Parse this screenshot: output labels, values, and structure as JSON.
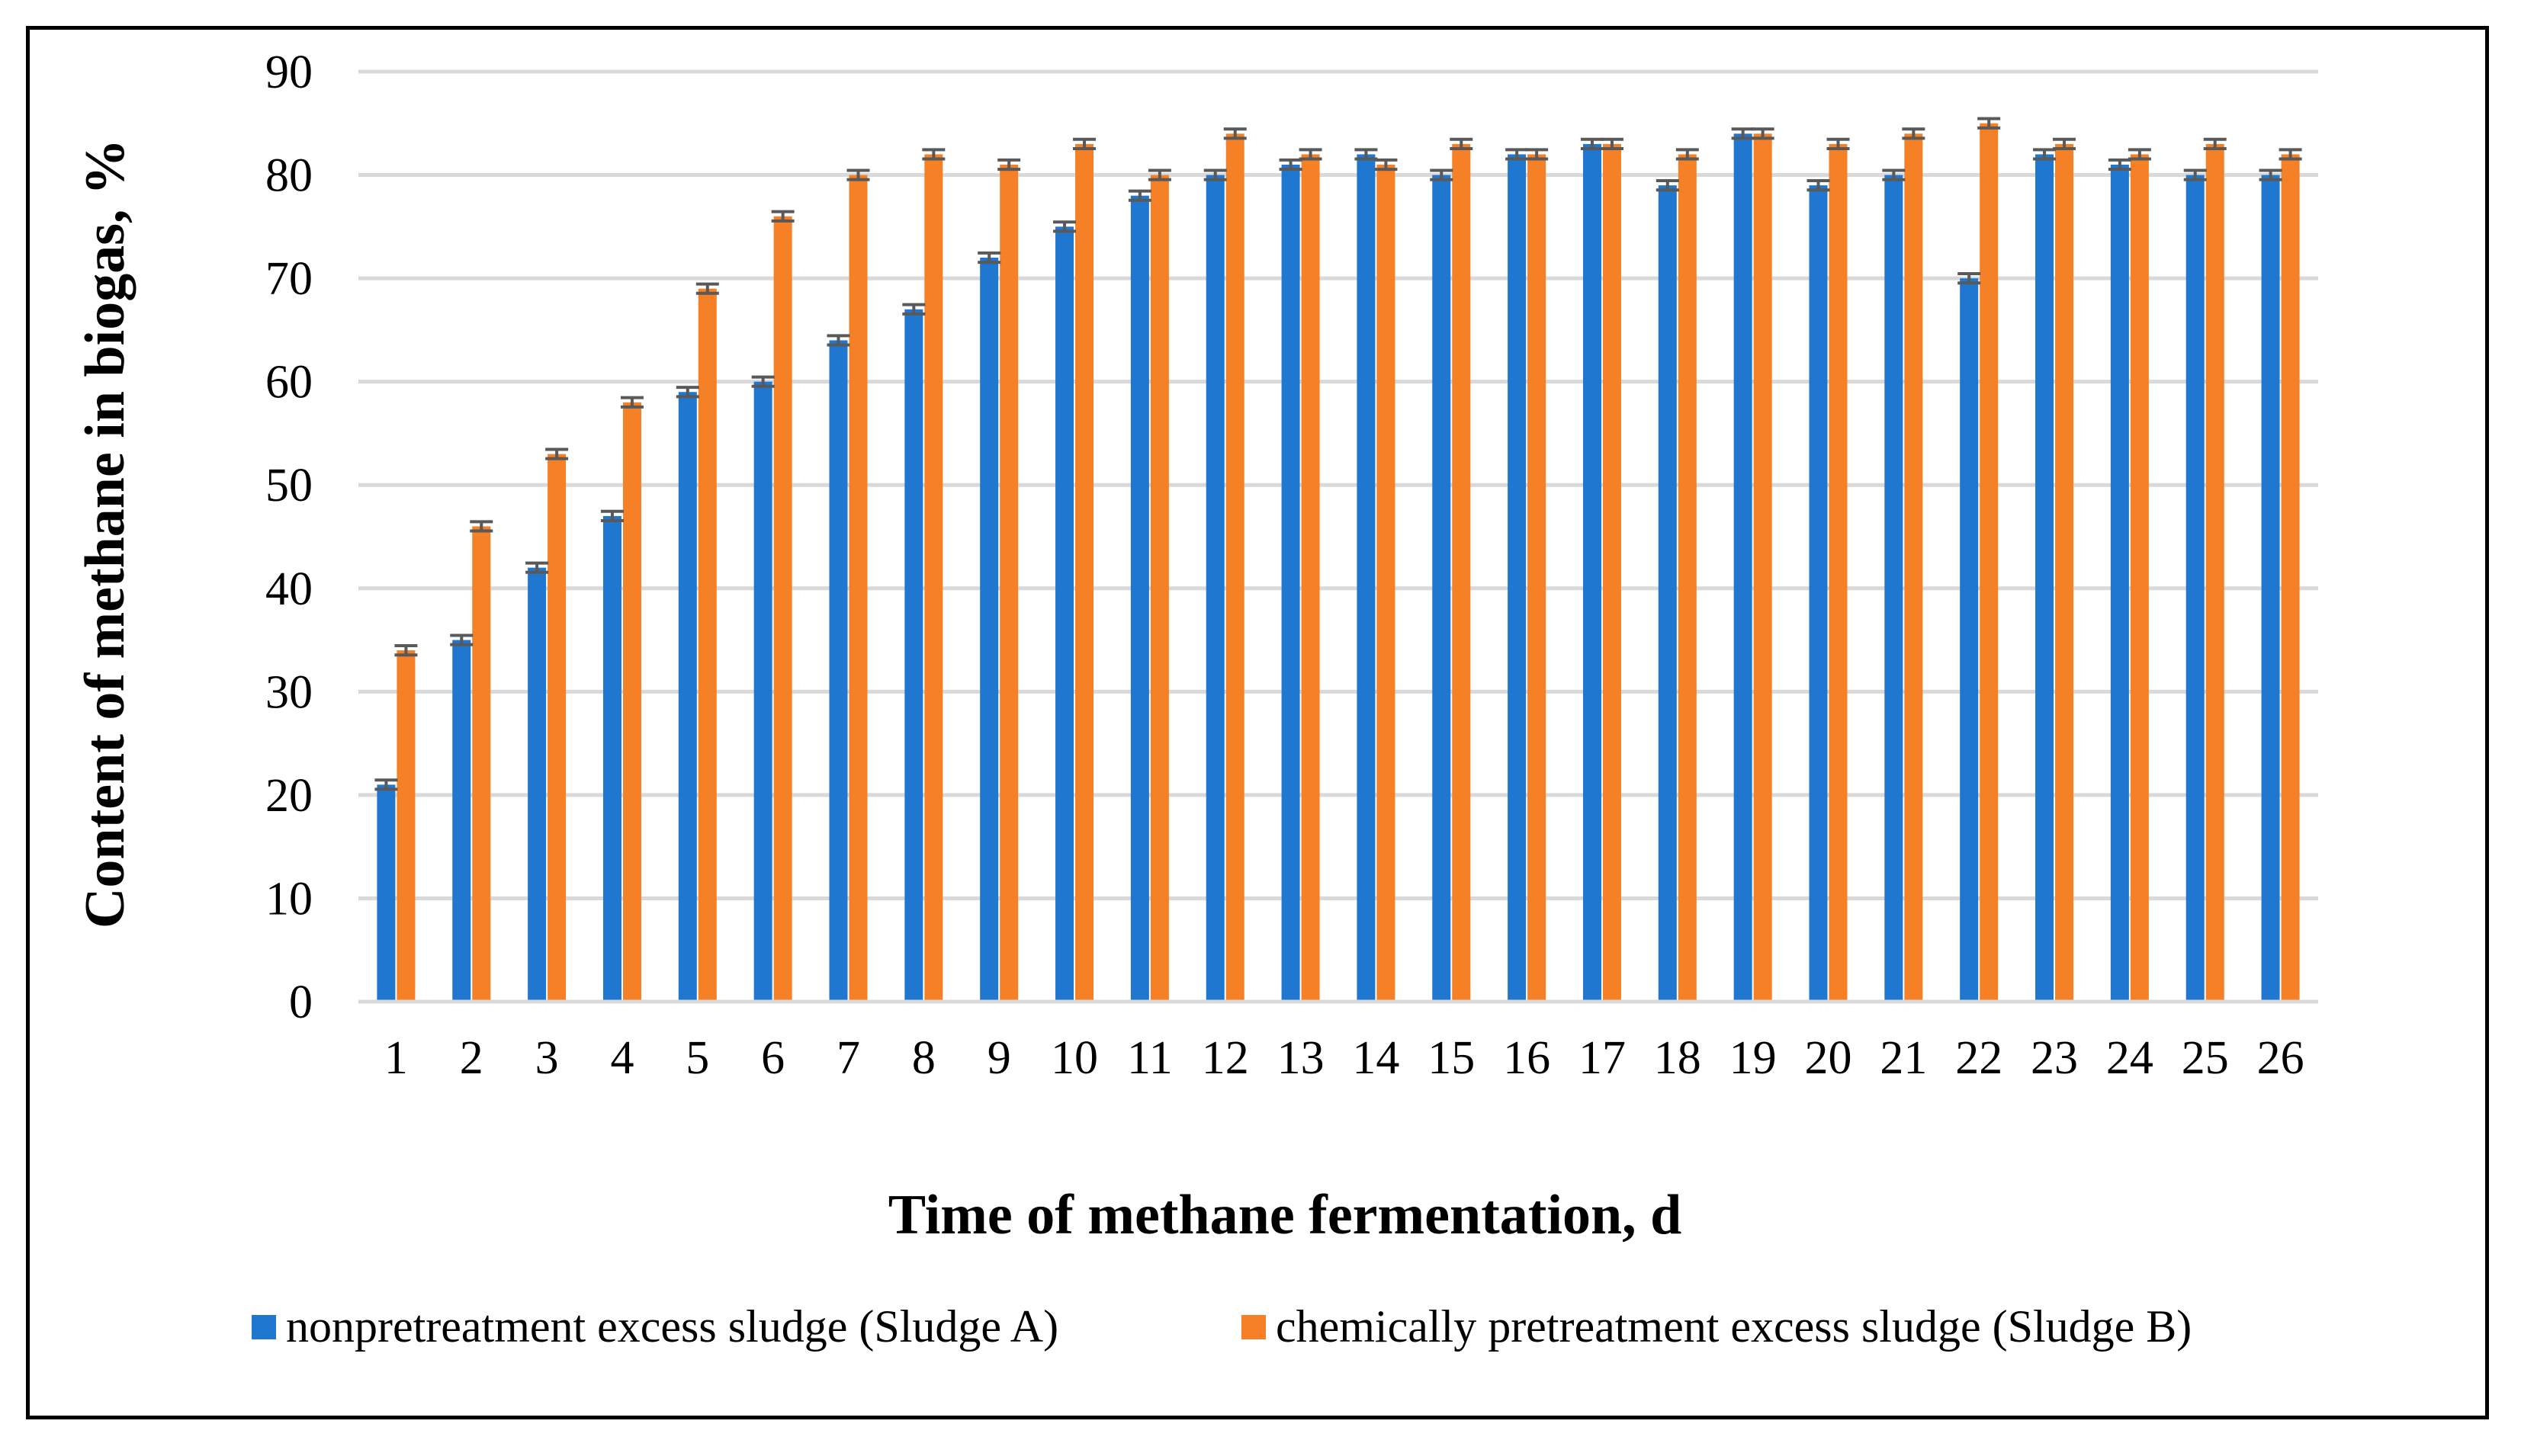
{
  "chart_data": {
    "type": "bar",
    "title": "",
    "xlabel": "Time of methane fermentation, d",
    "ylabel": "Content of methane in biogas, %",
    "ylim": [
      0,
      90
    ],
    "yticks": [
      "0",
      "10",
      "20",
      "30",
      "40",
      "50",
      "60",
      "70",
      "80",
      "90"
    ],
    "grid": true,
    "legend_position": "bottom",
    "error_bars": true,
    "categories": [
      "1",
      "2",
      "3",
      "4",
      "5",
      "6",
      "7",
      "8",
      "9",
      "10",
      "11",
      "12",
      "13",
      "14",
      "15",
      "16",
      "17",
      "18",
      "19",
      "20",
      "21",
      "22",
      "23",
      "24",
      "25",
      "26"
    ],
    "series": [
      {
        "name": "nonpretreatment excess sludge (Sludge A)",
        "color": "#1f77d0",
        "values": [
          21,
          35,
          42,
          47,
          59,
          60,
          64,
          67,
          72,
          75,
          78,
          80,
          81,
          82,
          80,
          82,
          83,
          79,
          84,
          79,
          80,
          70,
          82,
          81,
          80,
          80
        ]
      },
      {
        "name": "chemically pretreatment excess sludge (Sludge B)",
        "color": "#f58025",
        "values": [
          34,
          46,
          53,
          58,
          69,
          76,
          80,
          82,
          81,
          83,
          80,
          84,
          82,
          81,
          83,
          82,
          83,
          82,
          84,
          83,
          84,
          85,
          83,
          82,
          83,
          82
        ]
      }
    ]
  }
}
